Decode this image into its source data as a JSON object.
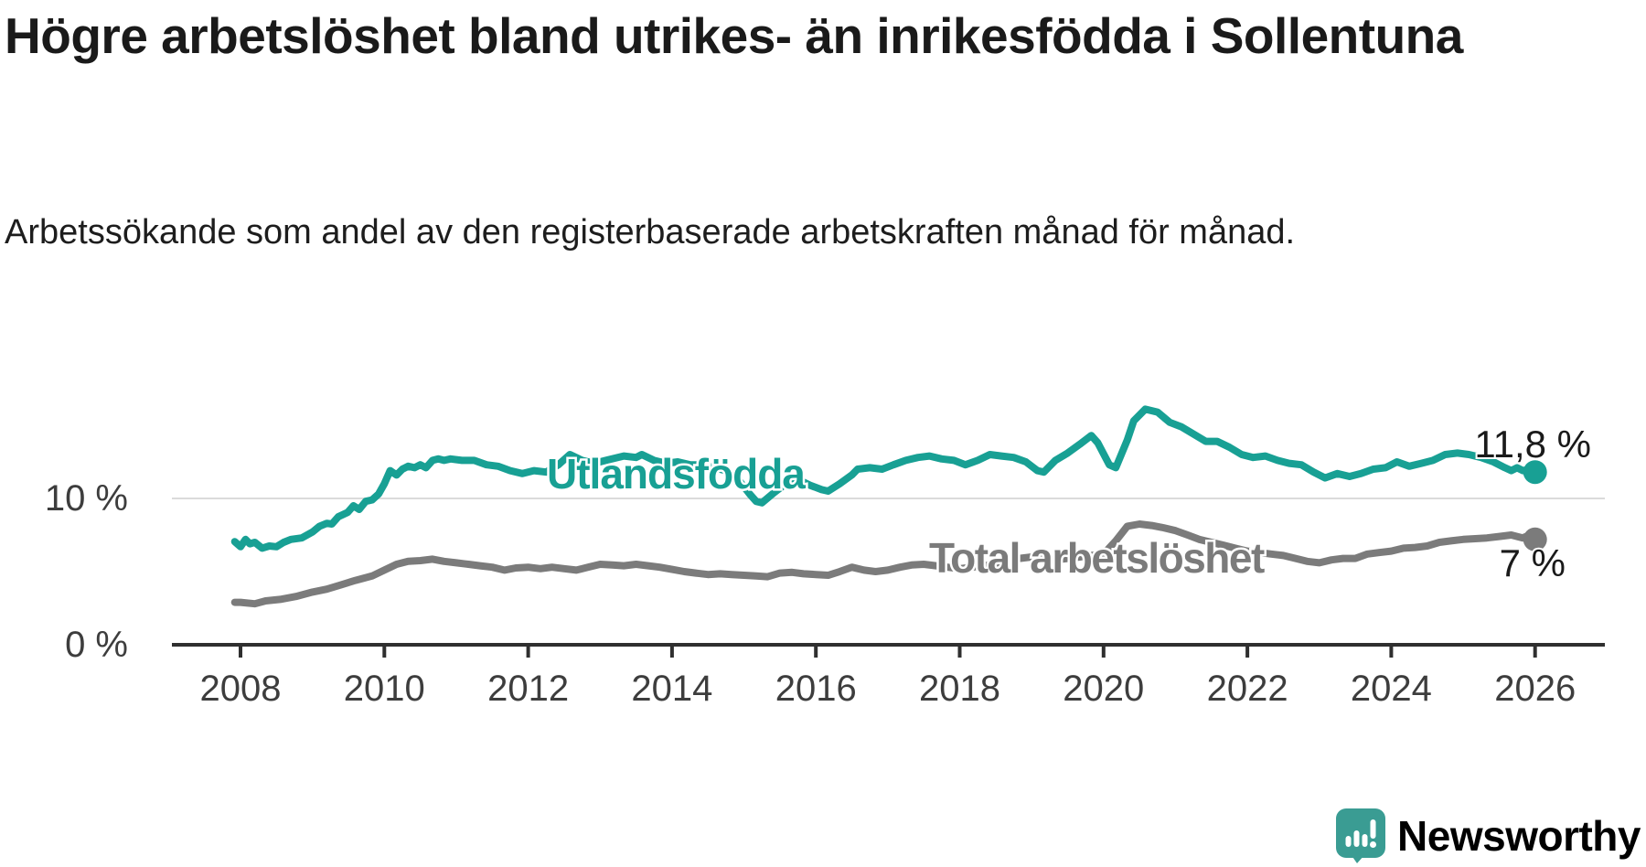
{
  "header": {
    "title": "Högre arbetslöshet bland utrikes- än inrikesfödda i Sollentuna",
    "subtitle": "Arbetssökande som andel av den registerbaserade arbetskraften månad för månad."
  },
  "chart_data": {
    "type": "line",
    "unit": "%",
    "grid": "horizontal-10-only",
    "legend_position": "inline-labels-on-lines",
    "x_axis": {
      "ticks": [
        2008,
        2010,
        2012,
        2014,
        2016,
        2018,
        2020,
        2022,
        2024,
        2026
      ],
      "min": 2007.9,
      "max": 2027.0
    },
    "y_axis": {
      "ticks": [
        {
          "value": 0,
          "label": "0 %"
        },
        {
          "value": 10,
          "label": "10 %"
        }
      ],
      "gridlines": [
        10
      ]
    },
    "series": [
      {
        "name": "Utlandsfödda",
        "color": "#18A094",
        "end_label": "11,8 %",
        "end_value": 11.8,
        "points": [
          [
            2007.92,
            7.05
          ],
          [
            2008.0,
            6.7
          ],
          [
            2008.07,
            7.2
          ],
          [
            2008.13,
            6.9
          ],
          [
            2008.2,
            7.0
          ],
          [
            2008.3,
            6.6
          ],
          [
            2008.4,
            6.75
          ],
          [
            2008.5,
            6.7
          ],
          [
            2008.6,
            7.0
          ],
          [
            2008.7,
            7.2
          ],
          [
            2008.85,
            7.3
          ],
          [
            2009.0,
            7.7
          ],
          [
            2009.1,
            8.1
          ],
          [
            2009.2,
            8.3
          ],
          [
            2009.27,
            8.25
          ],
          [
            2009.36,
            8.75
          ],
          [
            2009.49,
            9.05
          ],
          [
            2009.57,
            9.5
          ],
          [
            2009.65,
            9.25
          ],
          [
            2009.74,
            9.8
          ],
          [
            2009.83,
            9.9
          ],
          [
            2009.92,
            10.3
          ],
          [
            2010.0,
            11.0
          ],
          [
            2010.08,
            11.9
          ],
          [
            2010.17,
            11.6
          ],
          [
            2010.25,
            12.0
          ],
          [
            2010.33,
            12.2
          ],
          [
            2010.42,
            12.1
          ],
          [
            2010.5,
            12.3
          ],
          [
            2010.58,
            12.1
          ],
          [
            2010.67,
            12.6
          ],
          [
            2010.75,
            12.7
          ],
          [
            2010.83,
            12.6
          ],
          [
            2010.92,
            12.7
          ],
          [
            2011.08,
            12.6
          ],
          [
            2011.25,
            12.6
          ],
          [
            2011.42,
            12.3
          ],
          [
            2011.58,
            12.2
          ],
          [
            2011.75,
            11.9
          ],
          [
            2011.92,
            11.7
          ],
          [
            2012.08,
            11.9
          ],
          [
            2012.25,
            11.8
          ],
          [
            2012.42,
            12.3
          ],
          [
            2012.58,
            13.0
          ],
          [
            2012.75,
            12.6
          ],
          [
            2012.92,
            12.4
          ],
          [
            2013.08,
            12.6
          ],
          [
            2013.33,
            12.9
          ],
          [
            2013.5,
            12.8
          ],
          [
            2013.58,
            13.0
          ],
          [
            2013.75,
            12.6
          ],
          [
            2013.92,
            12.4
          ],
          [
            2014.08,
            12.5
          ],
          [
            2014.25,
            12.3
          ],
          [
            2014.42,
            12.3
          ],
          [
            2014.58,
            12.1
          ],
          [
            2014.75,
            11.9
          ],
          [
            2014.92,
            11.3
          ],
          [
            2015.08,
            10.3
          ],
          [
            2015.17,
            9.8
          ],
          [
            2015.25,
            9.7
          ],
          [
            2015.42,
            10.4
          ],
          [
            2015.58,
            11.0
          ],
          [
            2015.75,
            11.3
          ],
          [
            2015.92,
            10.9
          ],
          [
            2016.08,
            10.6
          ],
          [
            2016.17,
            10.5
          ],
          [
            2016.33,
            11.0
          ],
          [
            2016.5,
            11.6
          ],
          [
            2016.58,
            12.0
          ],
          [
            2016.75,
            12.1
          ],
          [
            2016.92,
            12.0
          ],
          [
            2017.08,
            12.3
          ],
          [
            2017.25,
            12.6
          ],
          [
            2017.42,
            12.8
          ],
          [
            2017.58,
            12.9
          ],
          [
            2017.75,
            12.7
          ],
          [
            2017.92,
            12.6
          ],
          [
            2018.08,
            12.3
          ],
          [
            2018.25,
            12.6
          ],
          [
            2018.42,
            13.0
          ],
          [
            2018.58,
            12.9
          ],
          [
            2018.75,
            12.8
          ],
          [
            2018.92,
            12.5
          ],
          [
            2019.08,
            11.9
          ],
          [
            2019.17,
            11.8
          ],
          [
            2019.33,
            12.6
          ],
          [
            2019.5,
            13.1
          ],
          [
            2019.67,
            13.7
          ],
          [
            2019.83,
            14.3
          ],
          [
            2019.92,
            13.8
          ],
          [
            2020.08,
            12.3
          ],
          [
            2020.17,
            12.1
          ],
          [
            2020.33,
            14.0
          ],
          [
            2020.42,
            15.3
          ],
          [
            2020.58,
            16.1
          ],
          [
            2020.75,
            15.9
          ],
          [
            2020.92,
            15.2
          ],
          [
            2021.08,
            14.9
          ],
          [
            2021.25,
            14.4
          ],
          [
            2021.42,
            13.9
          ],
          [
            2021.58,
            13.9
          ],
          [
            2021.75,
            13.5
          ],
          [
            2021.92,
            13.0
          ],
          [
            2022.08,
            12.8
          ],
          [
            2022.25,
            12.9
          ],
          [
            2022.42,
            12.6
          ],
          [
            2022.58,
            12.4
          ],
          [
            2022.75,
            12.3
          ],
          [
            2022.92,
            11.8
          ],
          [
            2023.08,
            11.4
          ],
          [
            2023.25,
            11.7
          ],
          [
            2023.42,
            11.5
          ],
          [
            2023.58,
            11.7
          ],
          [
            2023.75,
            12.0
          ],
          [
            2023.92,
            12.1
          ],
          [
            2024.08,
            12.5
          ],
          [
            2024.25,
            12.2
          ],
          [
            2024.42,
            12.4
          ],
          [
            2024.58,
            12.6
          ],
          [
            2024.75,
            13.0
          ],
          [
            2024.92,
            13.1
          ],
          [
            2025.08,
            13.0
          ],
          [
            2025.25,
            12.8
          ],
          [
            2025.42,
            12.5
          ],
          [
            2025.58,
            12.1
          ],
          [
            2025.67,
            11.9
          ],
          [
            2025.75,
            12.1
          ],
          [
            2025.83,
            11.9
          ],
          [
            2025.92,
            12.0
          ],
          [
            2026.0,
            11.8
          ]
        ]
      },
      {
        "name": "Total arbetslöshet",
        "color": "#7B7B7B",
        "end_label": "7 %",
        "end_value": 7.2,
        "points": [
          [
            2007.92,
            2.9
          ],
          [
            2008.0,
            2.9
          ],
          [
            2008.2,
            2.8
          ],
          [
            2008.35,
            3.0
          ],
          [
            2008.55,
            3.1
          ],
          [
            2008.77,
            3.3
          ],
          [
            2009.0,
            3.6
          ],
          [
            2009.2,
            3.8
          ],
          [
            2009.4,
            4.1
          ],
          [
            2009.6,
            4.4
          ],
          [
            2009.83,
            4.7
          ],
          [
            2010.0,
            5.1
          ],
          [
            2010.17,
            5.5
          ],
          [
            2010.33,
            5.7
          ],
          [
            2010.5,
            5.75
          ],
          [
            2010.67,
            5.85
          ],
          [
            2010.83,
            5.7
          ],
          [
            2011.0,
            5.6
          ],
          [
            2011.17,
            5.5
          ],
          [
            2011.33,
            5.4
          ],
          [
            2011.5,
            5.3
          ],
          [
            2011.67,
            5.1
          ],
          [
            2011.83,
            5.25
          ],
          [
            2012.0,
            5.3
          ],
          [
            2012.17,
            5.2
          ],
          [
            2012.33,
            5.3
          ],
          [
            2012.5,
            5.2
          ],
          [
            2012.67,
            5.1
          ],
          [
            2012.83,
            5.3
          ],
          [
            2013.0,
            5.5
          ],
          [
            2013.17,
            5.45
          ],
          [
            2013.33,
            5.4
          ],
          [
            2013.5,
            5.5
          ],
          [
            2013.67,
            5.4
          ],
          [
            2013.83,
            5.3
          ],
          [
            2014.0,
            5.15
          ],
          [
            2014.17,
            5.0
          ],
          [
            2014.33,
            4.9
          ],
          [
            2014.5,
            4.8
          ],
          [
            2014.67,
            4.85
          ],
          [
            2014.83,
            4.8
          ],
          [
            2015.0,
            4.75
          ],
          [
            2015.17,
            4.7
          ],
          [
            2015.33,
            4.65
          ],
          [
            2015.5,
            4.9
          ],
          [
            2015.67,
            4.95
          ],
          [
            2015.83,
            4.85
          ],
          [
            2016.0,
            4.8
          ],
          [
            2016.17,
            4.75
          ],
          [
            2016.33,
            5.0
          ],
          [
            2016.5,
            5.3
          ],
          [
            2016.67,
            5.1
          ],
          [
            2016.83,
            5.0
          ],
          [
            2017.0,
            5.1
          ],
          [
            2017.17,
            5.3
          ],
          [
            2017.33,
            5.45
          ],
          [
            2017.5,
            5.5
          ],
          [
            2017.67,
            5.4
          ],
          [
            2017.83,
            5.3
          ],
          [
            2018.0,
            5.2
          ],
          [
            2018.17,
            5.3
          ],
          [
            2018.33,
            5.4
          ],
          [
            2018.5,
            5.5
          ],
          [
            2018.67,
            5.6
          ],
          [
            2018.83,
            5.9
          ],
          [
            2019.0,
            6.0
          ],
          [
            2019.17,
            5.9
          ],
          [
            2019.33,
            5.8
          ],
          [
            2019.5,
            5.9
          ],
          [
            2019.67,
            6.0
          ],
          [
            2019.83,
            6.1
          ],
          [
            2020.0,
            6.2
          ],
          [
            2020.17,
            7.1
          ],
          [
            2020.33,
            8.1
          ],
          [
            2020.5,
            8.25
          ],
          [
            2020.67,
            8.15
          ],
          [
            2020.83,
            8.0
          ],
          [
            2021.0,
            7.8
          ],
          [
            2021.17,
            7.5
          ],
          [
            2021.33,
            7.2
          ],
          [
            2021.5,
            7.0
          ],
          [
            2021.67,
            6.8
          ],
          [
            2021.83,
            6.6
          ],
          [
            2022.0,
            6.4
          ],
          [
            2022.17,
            6.3
          ],
          [
            2022.33,
            6.2
          ],
          [
            2022.5,
            6.1
          ],
          [
            2022.67,
            5.9
          ],
          [
            2022.83,
            5.7
          ],
          [
            2023.0,
            5.6
          ],
          [
            2023.17,
            5.8
          ],
          [
            2023.33,
            5.9
          ],
          [
            2023.5,
            5.9
          ],
          [
            2023.67,
            6.2
          ],
          [
            2023.83,
            6.3
          ],
          [
            2024.0,
            6.4
          ],
          [
            2024.17,
            6.6
          ],
          [
            2024.33,
            6.65
          ],
          [
            2024.5,
            6.75
          ],
          [
            2024.67,
            7.0
          ],
          [
            2024.83,
            7.1
          ],
          [
            2025.0,
            7.2
          ],
          [
            2025.17,
            7.25
          ],
          [
            2025.33,
            7.3
          ],
          [
            2025.5,
            7.4
          ],
          [
            2025.67,
            7.5
          ],
          [
            2025.83,
            7.3
          ],
          [
            2025.92,
            7.5
          ],
          [
            2026.0,
            7.2
          ]
        ]
      }
    ]
  },
  "footer": {
    "brand": "Newsworthy",
    "brand_color": "#3A9C93"
  }
}
